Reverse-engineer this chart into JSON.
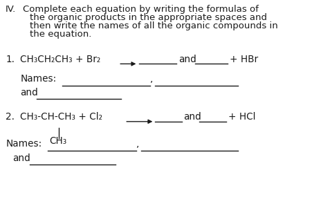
{
  "background_color": "#ffffff",
  "text_color": "#1a1a1a",
  "line_color": "#1a1a1a",
  "line_width": 1.0,
  "fs_header": 9.5,
  "fs_body": 9.8,
  "header_lines": [
    "IV.  Complete each equation by writing the formulas of",
    "      the organic products in the appropriate spaces and",
    "      then write the names of all the organic compounds in",
    "      the equation."
  ],
  "eq1_parts": {
    "label": "1.",
    "reactant": "CH₃CH₂CH₃ + Br₂",
    "and": "and",
    "product": "+ HBr"
  },
  "eq2_parts": {
    "label": "2.",
    "reactant": "CH₃-CH-CH₃ + Cl₂",
    "substituent": "CH₃",
    "and": "and",
    "product": "+ HCl"
  }
}
